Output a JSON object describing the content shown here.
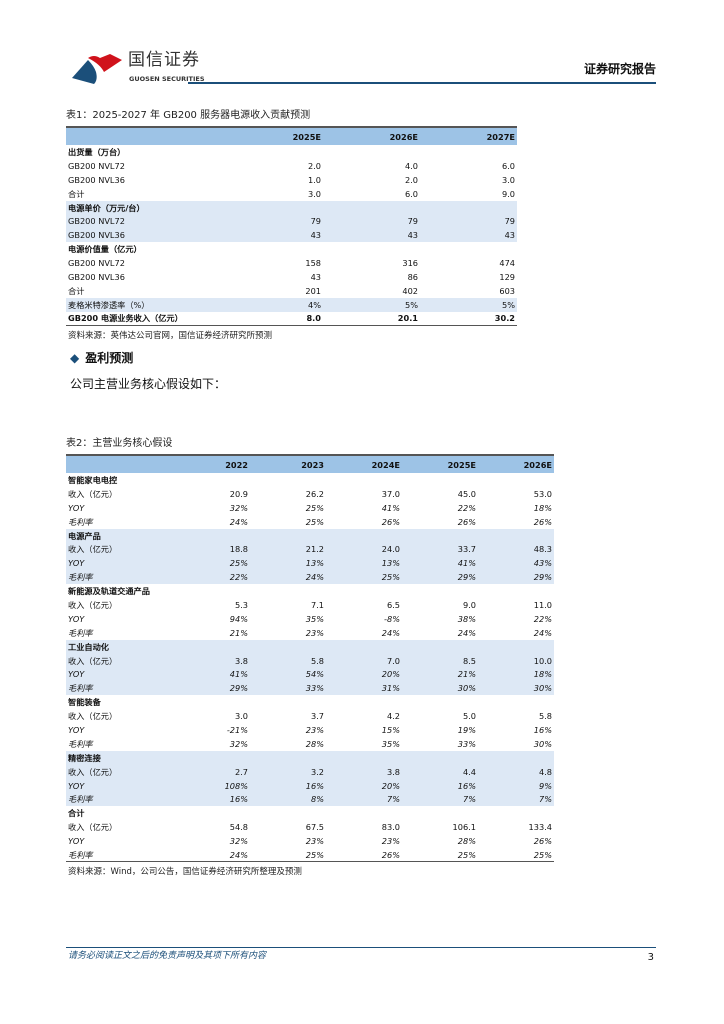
{
  "header": {
    "brand_cn": "国信证券",
    "brand_en": "GUOSEN SECURITIES",
    "report_type": "证券研究报告",
    "colors": {
      "brand_blue": "#1b4f7a",
      "brand_red": "#d0121b"
    }
  },
  "table1": {
    "caption": "表1：2025-2027 年 GB200 服务器电源收入贡献预测",
    "columns": [
      "",
      "2025E",
      "2026E",
      "2027E"
    ],
    "rows": [
      {
        "t": "sec",
        "cells": [
          "出货量（万台）",
          "",
          "",
          ""
        ]
      },
      {
        "cells": [
          "GB200 NVL72",
          "2.0",
          "4.0",
          "6.0"
        ]
      },
      {
        "cells": [
          "GB200 NVL36",
          "1.0",
          "2.0",
          "3.0"
        ]
      },
      {
        "cells": [
          "合计",
          "3.0",
          "6.0",
          "9.0"
        ]
      },
      {
        "t": "sec",
        "b": 1,
        "cells": [
          "电源单价（万元/台）",
          "",
          "",
          ""
        ]
      },
      {
        "b": 1,
        "cells": [
          "GB200 NVL72",
          "79",
          "79",
          "79"
        ]
      },
      {
        "b": 1,
        "cells": [
          "GB200 NVL36",
          "43",
          "43",
          "43"
        ]
      },
      {
        "t": "sec",
        "cells": [
          "电源价值量（亿元）",
          "",
          "",
          ""
        ]
      },
      {
        "cells": [
          "GB200 NVL72",
          "158",
          "316",
          "474"
        ]
      },
      {
        "cells": [
          "GB200 NVL36",
          "43",
          "86",
          "129"
        ]
      },
      {
        "cells": [
          "合计",
          "201",
          "402",
          "603"
        ]
      },
      {
        "b": 1,
        "cells": [
          "麦格米特渗透率（%）",
          "4%",
          "5%",
          "5%"
        ]
      },
      {
        "t": "bold",
        "cells": [
          "GB200 电源业务收入（亿元）",
          "8.0",
          "20.1",
          "30.2"
        ]
      }
    ],
    "source": "资料来源：英伟达公司官网，国信证券经济研究所预测"
  },
  "section": {
    "title": "盈利预测",
    "intro": "公司主营业务核心假设如下："
  },
  "table2": {
    "caption": "表2：主营业务核心假设",
    "columns": [
      "",
      "2022",
      "2023",
      "2024E",
      "2025E",
      "2026E"
    ],
    "groups": [
      {
        "name": "智能家电电控",
        "rev": [
          "20.9",
          "26.2",
          "37.0",
          "45.0",
          "53.0"
        ],
        "yoy": [
          "32%",
          "25%",
          "41%",
          "22%",
          "18%"
        ],
        "gm": [
          "24%",
          "25%",
          "26%",
          "26%",
          "26%"
        ]
      },
      {
        "name": "电源产品",
        "rev": [
          "18.8",
          "21.2",
          "24.0",
          "33.7",
          "48.3"
        ],
        "yoy": [
          "25%",
          "13%",
          "13%",
          "41%",
          "43%"
        ],
        "gm": [
          "22%",
          "24%",
          "25%",
          "29%",
          "29%"
        ]
      },
      {
        "name": "新能源及轨道交通产品",
        "rev": [
          "5.3",
          "7.1",
          "6.5",
          "9.0",
          "11.0"
        ],
        "yoy": [
          "94%",
          "35%",
          "-8%",
          "38%",
          "22%"
        ],
        "gm": [
          "21%",
          "23%",
          "24%",
          "24%",
          "24%"
        ]
      },
      {
        "name": "工业自动化",
        "rev": [
          "3.8",
          "5.8",
          "7.0",
          "8.5",
          "10.0"
        ],
        "yoy": [
          "41%",
          "54%",
          "20%",
          "21%",
          "18%"
        ],
        "gm": [
          "29%",
          "33%",
          "31%",
          "30%",
          "30%"
        ]
      },
      {
        "name": "智能装备",
        "rev": [
          "3.0",
          "3.7",
          "4.2",
          "5.0",
          "5.8"
        ],
        "yoy": [
          "-21%",
          "23%",
          "15%",
          "19%",
          "16%"
        ],
        "gm": [
          "32%",
          "28%",
          "35%",
          "33%",
          "30%"
        ]
      },
      {
        "name": "精密连接",
        "rev": [
          "2.7",
          "3.2",
          "3.8",
          "4.4",
          "4.8"
        ],
        "yoy": [
          "108%",
          "16%",
          "20%",
          "16%",
          "9%"
        ],
        "gm": [
          "16%",
          "8%",
          "7%",
          "7%",
          "7%"
        ]
      },
      {
        "name": "合计",
        "rev": [
          "54.8",
          "67.5",
          "83.0",
          "106.1",
          "133.4"
        ],
        "yoy": [
          "32%",
          "23%",
          "23%",
          "28%",
          "26%"
        ],
        "gm": [
          "24%",
          "25%",
          "26%",
          "25%",
          "25%"
        ]
      }
    ],
    "row_labels": {
      "rev": "收入（亿元）",
      "yoy": "YOY",
      "gm": "毛利率"
    },
    "source": "资料来源：Wind，公司公告，国信证券经济研究所整理及预测"
  },
  "footer": {
    "disclaimer": "请务必阅读正文之后的免责声明及其项下所有内容",
    "page": "3"
  }
}
